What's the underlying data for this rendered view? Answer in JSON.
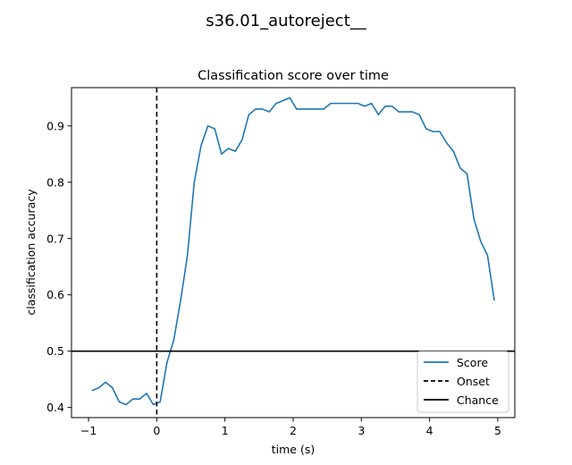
{
  "figure": {
    "suptitle": "s36.01_autoreject__"
  },
  "chart_data": {
    "type": "line",
    "title": "Classification score over time",
    "xlabel": "time (s)",
    "ylabel": "classification accuracy",
    "xlim": [
      -1.25,
      5.25
    ],
    "ylim": [
      0.382,
      0.968
    ],
    "xticks": [
      -1,
      0,
      1,
      2,
      3,
      4,
      5
    ],
    "xtick_labels": [
      "−1",
      "0",
      "1",
      "2",
      "3",
      "4",
      "5"
    ],
    "yticks": [
      0.4,
      0.5,
      0.6,
      0.7,
      0.8,
      0.9
    ],
    "ytick_labels": [
      "0.4",
      "0.5",
      "0.6",
      "0.7",
      "0.8",
      "0.9"
    ],
    "grid": false,
    "legend_position": "lower-right",
    "series": [
      {
        "name": "Score",
        "color": "#1f77b4",
        "style": "solid",
        "x": [
          -0.95,
          -0.85,
          -0.75,
          -0.65,
          -0.55,
          -0.45,
          -0.35,
          -0.25,
          -0.15,
          -0.05,
          0.05,
          0.15,
          0.25,
          0.35,
          0.45,
          0.55,
          0.65,
          0.75,
          0.85,
          0.95,
          1.05,
          1.15,
          1.25,
          1.35,
          1.45,
          1.55,
          1.65,
          1.75,
          1.85,
          1.95,
          2.05,
          2.15,
          2.25,
          2.35,
          2.45,
          2.55,
          2.65,
          2.75,
          2.85,
          2.95,
          3.05,
          3.15,
          3.25,
          3.35,
          3.45,
          3.55,
          3.65,
          3.75,
          3.85,
          3.95,
          4.05,
          4.15,
          4.25,
          4.35,
          4.45,
          4.55,
          4.65,
          4.75,
          4.85,
          4.95
        ],
        "y": [
          0.43,
          0.435,
          0.445,
          0.435,
          0.41,
          0.405,
          0.415,
          0.415,
          0.425,
          0.405,
          0.41,
          0.48,
          0.52,
          0.59,
          0.67,
          0.8,
          0.865,
          0.9,
          0.895,
          0.85,
          0.86,
          0.855,
          0.875,
          0.92,
          0.93,
          0.93,
          0.925,
          0.94,
          0.945,
          0.95,
          0.93,
          0.93,
          0.93,
          0.93,
          0.93,
          0.94,
          0.94,
          0.94,
          0.94,
          0.94,
          0.935,
          0.94,
          0.92,
          0.935,
          0.935,
          0.925,
          0.925,
          0.925,
          0.92,
          0.895,
          0.89,
          0.89,
          0.87,
          0.855,
          0.825,
          0.815,
          0.735,
          0.695,
          0.67,
          0.59
        ]
      }
    ],
    "reference_lines": [
      {
        "name": "Onset",
        "orientation": "vertical",
        "value": 0,
        "color": "#000000",
        "style": "dashed"
      },
      {
        "name": "Chance",
        "orientation": "horizontal",
        "value": 0.5,
        "color": "#000000",
        "style": "solid"
      }
    ]
  }
}
